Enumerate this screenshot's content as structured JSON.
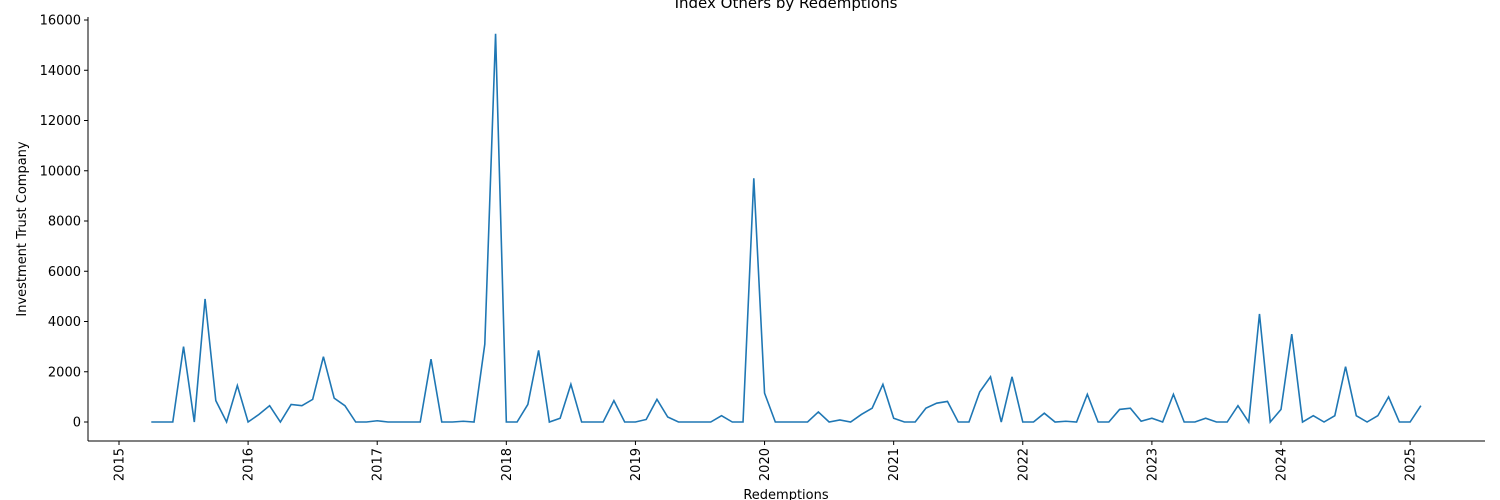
{
  "chart_data": {
    "type": "line",
    "title": "Index Others by Redemptions",
    "x_label": "Redemptions",
    "y_label": "Investment Trust Company",
    "x": [
      2015.25,
      2015.3333,
      2015.4167,
      2015.5,
      2015.5833,
      2015.6667,
      2015.75,
      2015.8333,
      2015.9167,
      2016,
      2016.0833,
      2016.1667,
      2016.25,
      2016.3333,
      2016.4167,
      2016.5,
      2016.5833,
      2016.6667,
      2016.75,
      2016.8333,
      2016.9167,
      2017,
      2017.0833,
      2017.1667,
      2017.25,
      2017.3333,
      2017.4167,
      2017.5,
      2017.5833,
      2017.6667,
      2017.75,
      2017.8333,
      2017.9167,
      2018,
      2018.0833,
      2018.1667,
      2018.25,
      2018.3333,
      2018.4167,
      2018.5,
      2018.5833,
      2018.6667,
      2018.75,
      2018.8333,
      2018.9167,
      2019,
      2019.0833,
      2019.1667,
      2019.25,
      2019.3333,
      2019.4167,
      2019.5,
      2019.5833,
      2019.6667,
      2019.75,
      2019.8333,
      2019.9167,
      2020,
      2020.0833,
      2020.1667,
      2020.25,
      2020.3333,
      2020.4167,
      2020.5,
      2020.5833,
      2020.6667,
      2020.75,
      2020.8333,
      2020.9167,
      2021,
      2021.0833,
      2021.1667,
      2021.25,
      2021.3333,
      2021.4167,
      2021.5,
      2021.5833,
      2021.6667,
      2021.75,
      2021.8333,
      2021.9167,
      2022,
      2022.0833,
      2022.1667,
      2022.25,
      2022.3333,
      2022.4167,
      2022.5,
      2022.5833,
      2022.6667,
      2022.75,
      2022.8333,
      2022.9167,
      2023,
      2023.0833,
      2023.1667,
      2023.25,
      2023.3333,
      2023.4167,
      2023.5,
      2023.5833,
      2023.6667,
      2023.75,
      2023.8333,
      2023.9167,
      2024,
      2024.0833,
      2024.1667,
      2024.25,
      2024.3333,
      2024.4167,
      2024.5,
      2024.5833,
      2024.6667,
      2024.75,
      2024.8333,
      2024.9167,
      2025,
      2025.0833
    ],
    "series": [
      {
        "color": "#1f77b4",
        "values": [
          0,
          0,
          0,
          3000,
          0,
          4900,
          850,
          0,
          1450,
          0,
          300,
          650,
          0,
          700,
          650,
          900,
          2600,
          950,
          650,
          0,
          0,
          50,
          0,
          0,
          0,
          0,
          2500,
          0,
          0,
          30,
          0,
          3100,
          15450,
          0,
          0,
          700,
          2850,
          0,
          150,
          1500,
          0,
          0,
          0,
          850,
          0,
          0,
          100,
          900,
          200,
          0,
          0,
          0,
          0,
          250,
          0,
          0,
          9700,
          1150,
          0,
          0,
          0,
          0,
          400,
          0,
          80,
          0,
          300,
          550,
          1500,
          150,
          0,
          0,
          550,
          750,
          820,
          0,
          0,
          1200,
          1800,
          0,
          1800,
          0,
          0,
          350,
          0,
          30,
          0,
          1100,
          0,
          0,
          500,
          550,
          30,
          150,
          0,
          1100,
          0,
          0,
          150,
          0,
          0,
          650,
          0,
          4300,
          0,
          500,
          3500,
          0,
          250,
          0,
          250,
          2200,
          250,
          0,
          250,
          1000,
          0,
          0,
          650
        ]
      }
    ],
    "xlim": [
      2014.76,
      2025.58
    ],
    "xticks": [
      2015,
      2016,
      2017,
      2018,
      2019,
      2020,
      2021,
      2022,
      2023,
      2024,
      2025
    ],
    "ylim": [
      -756,
      16120
    ],
    "yticks": [
      0,
      2000,
      4000,
      6000,
      8000,
      10000,
      12000,
      14000,
      16000
    ]
  }
}
